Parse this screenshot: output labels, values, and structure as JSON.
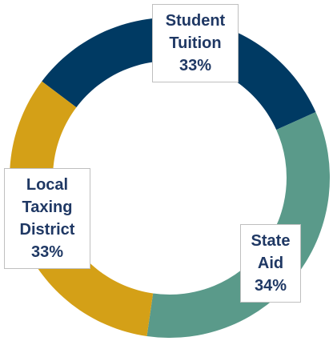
{
  "chart_data": {
    "type": "donut",
    "categories": [
      "Student Tuition",
      "State Aid",
      "Local Taxing District"
    ],
    "values": [
      33,
      34,
      33
    ],
    "value_labels": [
      "33%",
      "34%",
      "33%"
    ],
    "colors": [
      "#003a63",
      "#5a9a8a",
      "#d4a017"
    ]
  }
}
